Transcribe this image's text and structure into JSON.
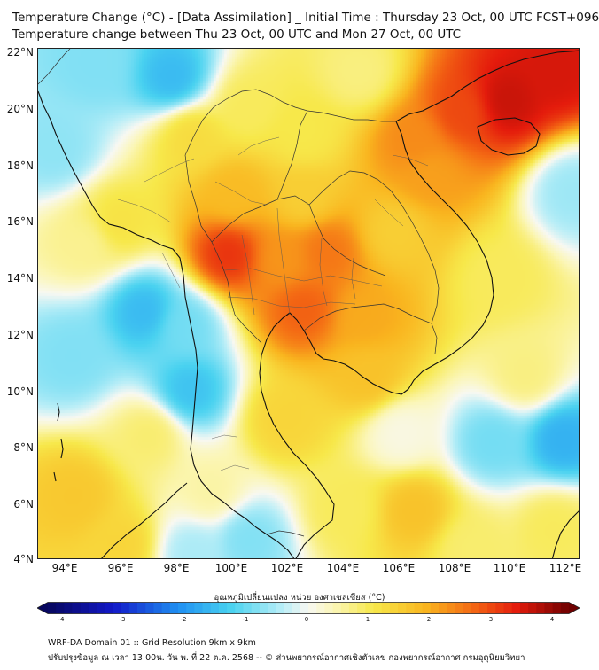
{
  "header": {
    "title_line1": "Temperature Change (°C) - [Data Assimilation] _ Initial Time : Thursday 23 Oct, 00 UTC FCST+096",
    "title_line2": "Temperature change between Thu 23 Oct, 00 UTC and Mon 27 Oct, 00 UTC"
  },
  "map": {
    "lat_labels": [
      "22°N",
      "20°N",
      "18°N",
      "16°N",
      "14°N",
      "12°N",
      "10°N",
      "8°N",
      "6°N",
      "4°N"
    ],
    "lon_labels": [
      "94°E",
      "96°E",
      "98°E",
      "100°E",
      "102°E",
      "104°E",
      "106°E",
      "108°E",
      "110°E",
      "112°E"
    ],
    "lat_range": [
      4,
      22
    ],
    "lon_range": [
      93,
      112.5
    ],
    "field": [
      {
        "lon": 109.8,
        "lat": 20.2,
        "value": 3.4
      },
      {
        "lon": 111.5,
        "lat": 21.2,
        "value": 3.3
      },
      {
        "lon": 108.2,
        "lat": 19.8,
        "value": 2.8
      },
      {
        "lon": 106.5,
        "lat": 18.8,
        "value": 2.2
      },
      {
        "lon": 107.0,
        "lat": 17.6,
        "value": 2.0
      },
      {
        "lon": 99.8,
        "lat": 14.8,
        "value": 3.0
      },
      {
        "lon": 101.8,
        "lat": 14.6,
        "value": 2.1
      },
      {
        "lon": 103.3,
        "lat": 14.9,
        "value": 2.4
      },
      {
        "lon": 102.5,
        "lat": 12.9,
        "value": 2.6
      },
      {
        "lon": 104.7,
        "lat": 12.6,
        "value": 1.9
      },
      {
        "lon": 100.0,
        "lat": 16.9,
        "value": 1.7
      },
      {
        "lon": 102.5,
        "lat": 16.8,
        "value": 1.4
      },
      {
        "lon": 105.8,
        "lat": 15.6,
        "value": 1.4
      },
      {
        "lon": 95.8,
        "lat": 15.9,
        "value": 1.1
      },
      {
        "lon": 94.7,
        "lat": 15.2,
        "value": 0.6
      },
      {
        "lon": 98.5,
        "lat": 19.0,
        "value": 1.2
      },
      {
        "lon": 100.5,
        "lat": 20.0,
        "value": 0.9
      },
      {
        "lon": 102.5,
        "lat": 19.0,
        "value": 1.0
      },
      {
        "lon": 104.8,
        "lat": 10.5,
        "value": 1.6
      },
      {
        "lon": 101.8,
        "lat": 9.0,
        "value": 1.3
      },
      {
        "lon": 106.5,
        "lat": 5.8,
        "value": 1.6
      },
      {
        "lon": 104.0,
        "lat": 5.8,
        "value": 0.9
      },
      {
        "lon": 94.3,
        "lat": 6.3,
        "value": 1.5
      },
      {
        "lon": 96.0,
        "lat": 4.6,
        "value": 1.3
      },
      {
        "lon": 99.2,
        "lat": 6.4,
        "value": 0.5
      },
      {
        "lon": 97.0,
        "lat": 8.5,
        "value": 0.8
      },
      {
        "lon": 109.5,
        "lat": 14.0,
        "value": 0.9
      },
      {
        "lon": 110.5,
        "lat": 10.5,
        "value": 0.7
      },
      {
        "lon": 111.5,
        "lat": 5.2,
        "value": 0.9
      },
      {
        "lon": 108.5,
        "lat": 4.5,
        "value": 0.8
      },
      {
        "lon": 104.5,
        "lat": 21.2,
        "value": 0.7
      },
      {
        "lon": 97.8,
        "lat": 21.0,
        "value": -1.5
      },
      {
        "lon": 95.0,
        "lat": 21.5,
        "value": -0.8
      },
      {
        "lon": 93.6,
        "lat": 18.5,
        "value": -0.7
      },
      {
        "lon": 96.8,
        "lat": 12.8,
        "value": -1.5
      },
      {
        "lon": 94.2,
        "lat": 11.2,
        "value": -0.8
      },
      {
        "lon": 98.4,
        "lat": 10.0,
        "value": -1.4
      },
      {
        "lon": 98.2,
        "lat": 12.3,
        "value": -0.9
      },
      {
        "lon": 111.8,
        "lat": 8.3,
        "value": -1.6
      },
      {
        "lon": 109.3,
        "lat": 8.2,
        "value": -0.9
      },
      {
        "lon": 112.2,
        "lat": 17.0,
        "value": -0.6
      },
      {
        "lon": 100.5,
        "lat": 4.8,
        "value": -0.8
      },
      {
        "lon": 98.5,
        "lat": 4.3,
        "value": -0.5
      },
      {
        "lon": 106.0,
        "lat": 8.5,
        "value": 0.1
      }
    ]
  },
  "colorbar": {
    "title": "อุณหภูมิเปลี่ยนแปลง หน่วย องศาเซลเซียส (°C)",
    "ticks": [
      "-4",
      "-3",
      "-2",
      "-1",
      "0",
      "1",
      "2",
      "3",
      "4"
    ],
    "tick_values": [
      -4,
      -3,
      -2,
      -1,
      0,
      1,
      2,
      3,
      4
    ],
    "range": [
      -4,
      4
    ],
    "stops": [
      {
        "v": -4.0,
        "color": "#07075e"
      },
      {
        "v": -3.0,
        "color": "#1218c8"
      },
      {
        "v": -2.0,
        "color": "#1f8ff2"
      },
      {
        "v": -1.2,
        "color": "#49d2f0"
      },
      {
        "v": -0.4,
        "color": "#b9eef7"
      },
      {
        "v": 0.0,
        "color": "#f8f8f2"
      },
      {
        "v": 0.4,
        "color": "#fbf6b6"
      },
      {
        "v": 1.0,
        "color": "#f7e84a"
      },
      {
        "v": 1.8,
        "color": "#f9b51f"
      },
      {
        "v": 2.5,
        "color": "#f46b14"
      },
      {
        "v": 3.2,
        "color": "#e41b0c"
      },
      {
        "v": 4.0,
        "color": "#6e0000"
      }
    ]
  },
  "footer": {
    "line1": "WRF-DA Domain 01 :: Grid Resolution 9km x 9km",
    "line2": "ปรับปรุงข้อมูล ณ เวลา 13:00น. วัน พ. ที่ 22 ต.ค. 2568 -- © ส่วนพยากรณ์อากาศเชิงตัวเลข กองพยากรณ์อากาศ กรมอุตุนิยมวิทยา"
  }
}
